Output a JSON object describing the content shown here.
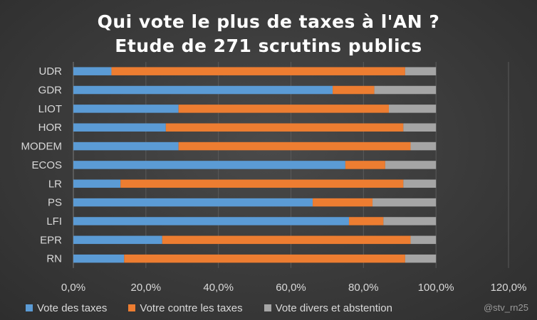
{
  "chart_data": {
    "type": "bar",
    "orientation": "horizontal",
    "stacked": true,
    "title": "Qui vote le plus de taxes à l'AN ?",
    "subtitle": "Etude de 271 scrutins publics",
    "categories": [
      "UDR",
      "GDR",
      "LIOT",
      "HOR",
      "MODEM",
      "ECOS",
      "LR",
      "PS",
      "LFI",
      "EPR",
      "RN"
    ],
    "series": [
      {
        "name": "Vote des taxes",
        "color": "#5b9bd5",
        "values": [
          10.5,
          71.5,
          29.0,
          25.5,
          29.0,
          75.0,
          13.0,
          66.0,
          76.0,
          24.5,
          14.0
        ]
      },
      {
        "name": "Votre contre les taxes",
        "color": "#ed7d31",
        "values": [
          81.0,
          11.5,
          58.0,
          65.5,
          64.0,
          11.0,
          78.0,
          16.5,
          9.5,
          68.5,
          77.5
        ]
      },
      {
        "name": "Vote divers et abstention",
        "color": "#a5a5a5",
        "values": [
          8.5,
          17.0,
          13.0,
          9.0,
          7.0,
          14.0,
          9.0,
          17.5,
          14.5,
          7.0,
          8.5
        ]
      }
    ],
    "xlim": [
      0,
      120
    ],
    "xticks": [
      "0,0%",
      "20,0%",
      "40,0%",
      "60,0%",
      "80,0%",
      "100,0%",
      "120,0%"
    ],
    "grid": true,
    "legend_position": "bottom"
  },
  "credit": "@stv_rn25"
}
